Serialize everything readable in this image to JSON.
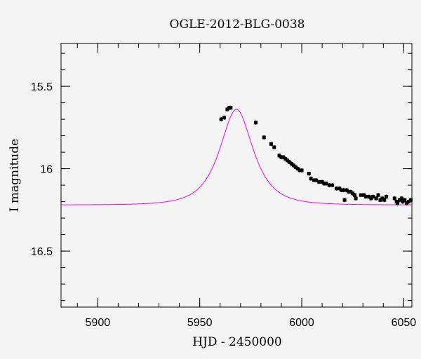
{
  "chart_data": {
    "type": "scatter",
    "title": "OGLE-2012-BLG-0038",
    "xlabel": "HJD - 2450000",
    "ylabel": "I magnitude",
    "xlim": [
      5882,
      6054
    ],
    "ylim": [
      16.84,
      15.24
    ],
    "y_inverted": true,
    "x_ticks": [
      5900,
      5950,
      6000,
      6050
    ],
    "y_ticks": [
      15.5,
      16,
      16.5
    ],
    "x_minor_step": 10,
    "y_minor_step": 0.1,
    "grid": false,
    "point_color": "#000000",
    "model_color": "#ff00ff",
    "model": {
      "name": "",
      "baseline_mag": 16.22,
      "peak_mag": 15.64,
      "t0": 5968,
      "tE": 12
    },
    "series": [
      {
        "name": "",
        "points": [
          [
            5960.5,
            15.7
          ],
          [
            5962.0,
            15.69
          ],
          [
            5963.5,
            15.64
          ],
          [
            5964.5,
            15.63
          ],
          [
            5965.2,
            15.63
          ],
          [
            5977.5,
            15.72
          ],
          [
            5981.5,
            15.81
          ],
          [
            5985.0,
            15.85
          ],
          [
            5986.5,
            15.87
          ],
          [
            5989.0,
            15.92
          ],
          [
            5990.0,
            15.93
          ],
          [
            5991.0,
            15.93
          ],
          [
            5992.0,
            15.94
          ],
          [
            5993.0,
            15.95
          ],
          [
            5994.0,
            15.96
          ],
          [
            5995.0,
            15.97
          ],
          [
            5996.0,
            15.98
          ],
          [
            5997.0,
            15.99
          ],
          [
            5998.0,
            16.0
          ],
          [
            5999.0,
            16.01
          ],
          [
            6000.0,
            16.01
          ],
          [
            6003.5,
            16.03
          ],
          [
            6004.5,
            16.06
          ],
          [
            6006.0,
            16.07
          ],
          [
            6007.0,
            16.07
          ],
          [
            6008.5,
            16.08
          ],
          [
            6010.0,
            16.08
          ],
          [
            6011.0,
            16.09
          ],
          [
            6012.0,
            16.09
          ],
          [
            6013.5,
            16.1
          ],
          [
            6015.0,
            16.1
          ],
          [
            6017.0,
            16.12
          ],
          [
            6018.5,
            16.12
          ],
          [
            6019.5,
            16.13
          ],
          [
            6020.5,
            16.13
          ],
          [
            6021.0,
            16.19
          ],
          [
            6022.0,
            16.13
          ],
          [
            6023.0,
            16.14
          ],
          [
            6024.0,
            16.14
          ],
          [
            6025.0,
            16.15
          ],
          [
            6026.0,
            16.16
          ],
          [
            6026.5,
            16.18
          ],
          [
            6029.0,
            16.16
          ],
          [
            6030.5,
            16.16
          ],
          [
            6031.5,
            16.17
          ],
          [
            6033.0,
            16.17
          ],
          [
            6034.0,
            16.18
          ],
          [
            6035.0,
            16.17
          ],
          [
            6036.5,
            16.18
          ],
          [
            6037.5,
            16.16
          ],
          [
            6038.5,
            16.19
          ],
          [
            6039.5,
            16.18
          ],
          [
            6040.5,
            16.19
          ],
          [
            6041.5,
            16.17
          ],
          [
            6045.5,
            16.18
          ],
          [
            6046.5,
            16.2
          ],
          [
            6047.0,
            16.21
          ],
          [
            6048.0,
            16.19
          ],
          [
            6049.0,
            16.18
          ],
          [
            6049.5,
            16.2
          ],
          [
            6050.5,
            16.19
          ],
          [
            6051.5,
            16.21
          ],
          [
            6052.5,
            16.2
          ],
          [
            6053.5,
            16.19
          ]
        ]
      }
    ]
  }
}
